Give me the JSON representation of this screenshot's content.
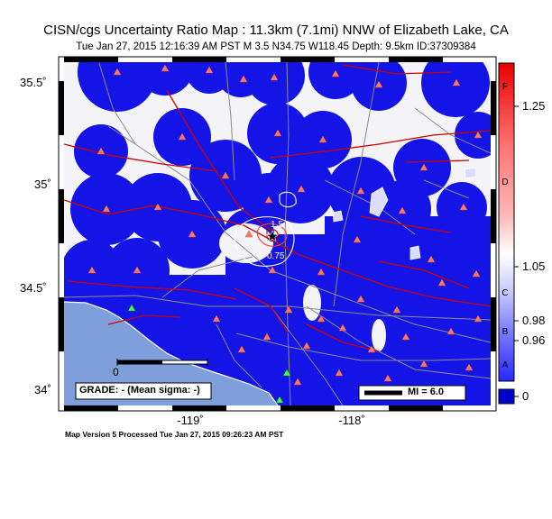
{
  "title": "CISN/cgs Uncertainty Ratio Map : 11.3km (7.1mi) NNW of Elizabeth Lake, CA",
  "subtitle": "Tue Jan 27, 2015 12:16:39 AM PST   M 3.5   N34.75 W118.45   Depth: 9.5km   ID:37309384",
  "axes": {
    "lat_ticks": [
      "35.5˚",
      "35˚",
      "34.5˚",
      "34˚"
    ],
    "lon_ticks": [
      "-119˚",
      "-118˚"
    ]
  },
  "colorbar": {
    "letters": [
      "F",
      "D",
      "C",
      "B",
      "A"
    ],
    "values": [
      "1.25",
      "1.05",
      "0.98",
      "0.96",
      "0"
    ]
  },
  "map": {
    "grade": "GRADE: - (Mean sigma: -)",
    "mi_legend": "MI = 6.0",
    "scale_zero": "0",
    "contour_labels": [
      "1.5",
      "0.75"
    ]
  },
  "footer": "Map Version 5 Processed Tue Jan 27, 2015 09:26:23 AM PST",
  "colors": {
    "land": "#f4f4f6",
    "ocean": "#7f9fdc",
    "blue_patch": "#1414e6",
    "stations": "#ff7a64",
    "faults": "#cc0000",
    "roads": "#8c8c8c"
  }
}
